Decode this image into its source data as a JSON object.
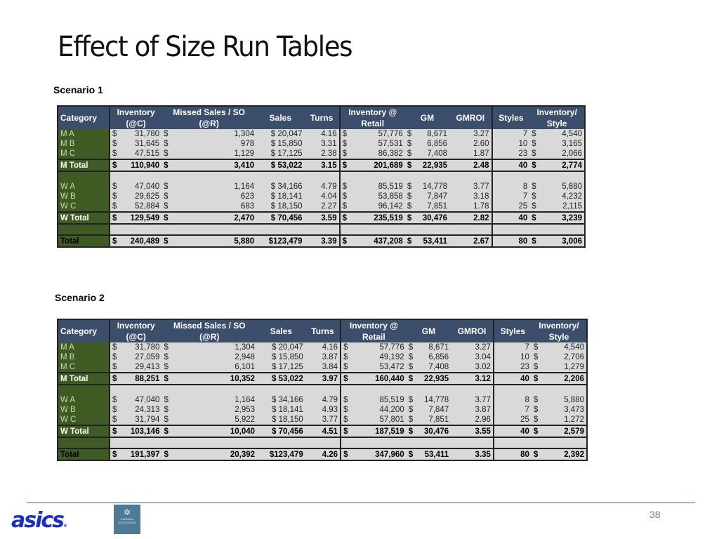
{
  "slide": {
    "title": "Effect of Size Run Tables",
    "page_number": "38"
  },
  "columns": {
    "category": "Category",
    "inventory_c_1": "Inventory",
    "inventory_c_2": "(@C)",
    "missed_1": "Missed Sales / SO",
    "missed_2": "(@R)",
    "sales": "Sales",
    "turns": "Turns",
    "inv_retail_1": "Inventory @",
    "inv_retail_2": "Retail",
    "gm": "GM",
    "gmroi": "GMROI",
    "styles": "Styles",
    "inv_style_1": "Inventory/",
    "inv_style_2": "Style"
  },
  "currency_symbol": "$",
  "scenario1": {
    "label": "Scenario 1",
    "rows": {
      "ma": {
        "category": "M A",
        "inventory_c": "31,780",
        "missed": "1,304",
        "sales": "$ 20,047",
        "turns": "4.16",
        "inv_retail": "57,776",
        "gm": "8,671",
        "gmroi": "3.27",
        "styles": "7",
        "inv_style": "4,540"
      },
      "mb": {
        "category": "M B",
        "inventory_c": "31,645",
        "missed": "978",
        "sales": "$ 15,850",
        "turns": "3.31",
        "inv_retail": "57,531",
        "gm": "6,856",
        "gmroi": "2.60",
        "styles": "10",
        "inv_style": "3,165"
      },
      "mc": {
        "category": "M C",
        "inventory_c": "47,515",
        "missed": "1,129",
        "sales": "$ 17,125",
        "turns": "2.38",
        "inv_retail": "86,382",
        "gm": "7,408",
        "gmroi": "1.87",
        "styles": "23",
        "inv_style": "2,066"
      },
      "mtotal": {
        "category": "M Total",
        "inventory_c": "110,940",
        "missed": "3,410",
        "sales": "$ 53,022",
        "turns": "3.15",
        "inv_retail": "201,689",
        "gm": "22,935",
        "gmroi": "2.48",
        "styles": "40",
        "inv_style": "2,774"
      },
      "wa": {
        "category": "W A",
        "inventory_c": "47,040",
        "missed": "1,164",
        "sales": "$ 34,166",
        "turns": "4.79",
        "inv_retail": "85,519",
        "gm": "14,778",
        "gmroi": "3.77",
        "styles": "8",
        "inv_style": "5,880"
      },
      "wb": {
        "category": "W B",
        "inventory_c": "29,625",
        "missed": "623",
        "sales": "$ 18,141",
        "turns": "4.04",
        "inv_retail": "53,858",
        "gm": "7,847",
        "gmroi": "3.18",
        "styles": "7",
        "inv_style": "4,232"
      },
      "wc": {
        "category": "W C",
        "inventory_c": "52,884",
        "missed": "683",
        "sales": "$ 18,150",
        "turns": "2.27",
        "inv_retail": "96,142",
        "gm": "7,851",
        "gmroi": "1.78",
        "styles": "25",
        "inv_style": "2,115"
      },
      "wtotal": {
        "category": "W Total",
        "inventory_c": "129,549",
        "missed": "2,470",
        "sales": "$ 70,456",
        "turns": "3.59",
        "inv_retail": "235,519",
        "gm": "30,476",
        "gmroi": "2.82",
        "styles": "40",
        "inv_style": "3,239"
      },
      "total": {
        "category": "Total",
        "inventory_c": "240,489",
        "missed": "5,880",
        "sales": "$123,479",
        "turns": "3.39",
        "inv_retail": "437,208",
        "gm": "53,411",
        "gmroi": "2.67",
        "styles": "80",
        "inv_style": "3,006"
      }
    }
  },
  "scenario2": {
    "label": "Scenario 2",
    "rows": {
      "ma": {
        "category": "M A",
        "inventory_c": "31,780",
        "missed": "1,304",
        "sales": "$ 20,047",
        "turns": "4.16",
        "inv_retail": "57,776",
        "gm": "8,671",
        "gmroi": "3.27",
        "styles": "7",
        "inv_style": "4,540"
      },
      "mb": {
        "category": "M B",
        "inventory_c": "27,059",
        "missed": "2,948",
        "sales": "$ 15,850",
        "turns": "3.87",
        "inv_retail": "49,192",
        "gm": "6,856",
        "gmroi": "3.04",
        "styles": "10",
        "inv_style": "2,706"
      },
      "mc": {
        "category": "M C",
        "inventory_c": "29,413",
        "missed": "6,101",
        "sales": "$ 17,125",
        "turns": "3.84",
        "inv_retail": "53,472",
        "gm": "7,408",
        "gmroi": "3.02",
        "styles": "23",
        "inv_style": "1,279"
      },
      "mtotal": {
        "category": "M Total",
        "inventory_c": "88,251",
        "missed": "10,352",
        "sales": "$ 53,022",
        "turns": "3.97",
        "inv_retail": "160,440",
        "gm": "22,935",
        "gmroi": "3.12",
        "styles": "40",
        "inv_style": "2,206"
      },
      "wa": {
        "category": "W A",
        "inventory_c": "47,040",
        "missed": "1,164",
        "sales": "$ 34,166",
        "turns": "4.79",
        "inv_retail": "85,519",
        "gm": "14,778",
        "gmroi": "3.77",
        "styles": "8",
        "inv_style": "5,880"
      },
      "wb": {
        "category": "W B",
        "inventory_c": "24,313",
        "missed": "2,953",
        "sales": "$ 18,141",
        "turns": "4.93",
        "inv_retail": "44,200",
        "gm": "7,847",
        "gmroi": "3.87",
        "styles": "7",
        "inv_style": "3,473"
      },
      "wc": {
        "category": "W C",
        "inventory_c": "31,794",
        "missed": "5,922",
        "sales": "$ 18,150",
        "turns": "3.77",
        "inv_retail": "57,801",
        "gm": "7,851",
        "gmroi": "2.96",
        "styles": "25",
        "inv_style": "1,272"
      },
      "wtotal": {
        "category": "W Total",
        "inventory_c": "103,146",
        "missed": "10,040",
        "sales": "$ 70,456",
        "turns": "4.51",
        "inv_retail": "187,519",
        "gm": "30,476",
        "gmroi": "3.55",
        "styles": "40",
        "inv_style": "2,579"
      },
      "total": {
        "category": "Total",
        "inventory_c": "191,397",
        "missed": "20,392",
        "sales": "$123,479",
        "turns": "4.26",
        "inv_retail": "347,960",
        "gm": "53,411",
        "gmroi": "3.35",
        "styles": "80",
        "inv_style": "2,392"
      }
    }
  },
  "footer": {
    "brand_logo": "asics",
    "brand_mark": "®",
    "partner_logo_text": "KARMANI ASSOCIATES",
    "partner_icon": "tree-icon"
  },
  "colors": {
    "header_bg": "#3b4e6b",
    "category_bg": "#3f5a23",
    "body_bg": "#d9d9d9",
    "footer_line": "#4a64c8",
    "asics_blue": "#1b2fd0"
  }
}
